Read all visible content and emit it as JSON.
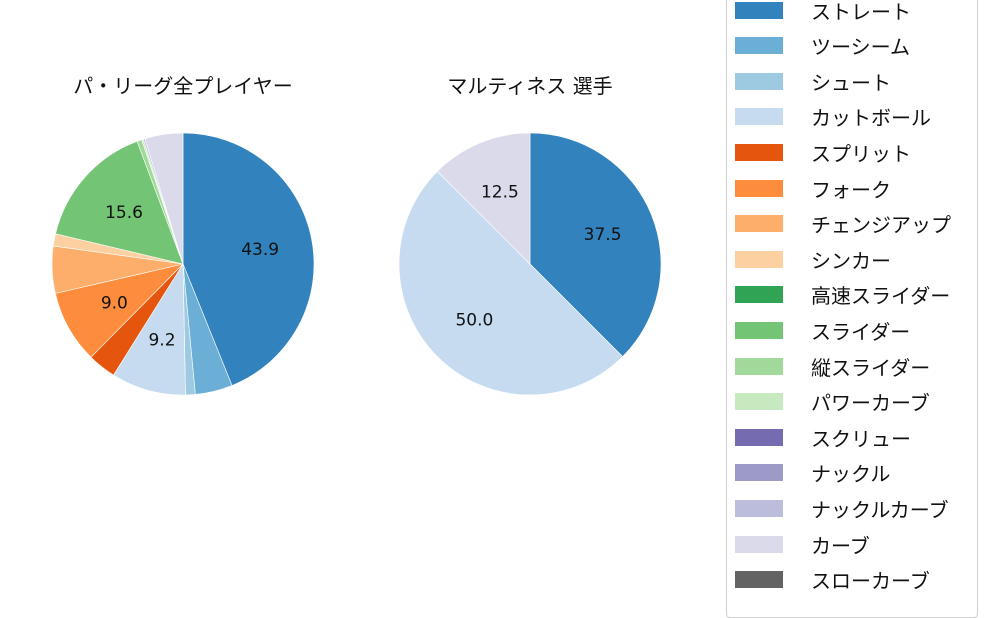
{
  "chart_data": [
    {
      "type": "pie",
      "title": "パ・リーグ全プレイヤー",
      "categories": [
        "ストレート",
        "ツーシーム",
        "シュート",
        "カットボール",
        "スプリット",
        "フォーク",
        "チェンジアップ",
        "シンカー",
        "高速スライダー",
        "スライダー",
        "縦スライダー",
        "パワーカーブ",
        "スクリュー",
        "ナックル",
        "ナックルカーブ",
        "カーブ",
        "スローカーブ"
      ],
      "values": [
        43.9,
        4.6,
        1.2,
        9.2,
        3.5,
        9.0,
        5.8,
        1.5,
        0.0,
        15.6,
        0.6,
        0.2,
        0.0,
        0.0,
        0.2,
        4.7,
        0.0
      ],
      "labels_shown": [
        "43.9",
        "9.2",
        "9.0",
        "15.6"
      ],
      "start_angle": 90,
      "direction": "clockwise"
    },
    {
      "type": "pie",
      "title": "マルティネス  選手",
      "categories": [
        "ストレート",
        "カットボール",
        "カーブ"
      ],
      "values": [
        37.5,
        50.0,
        12.5
      ],
      "labels_shown": [
        "37.5",
        "50.0",
        "12.5"
      ],
      "start_angle": 90,
      "direction": "clockwise"
    }
  ],
  "legend": {
    "position": "right",
    "items": [
      {
        "label": "ストレート",
        "color": "#3182bd"
      },
      {
        "label": "ツーシーム",
        "color": "#6baed6"
      },
      {
        "label": "シュート",
        "color": "#9ecae1"
      },
      {
        "label": "カットボール",
        "color": "#c6dbef"
      },
      {
        "label": "スプリット",
        "color": "#e6550d"
      },
      {
        "label": "フォーク",
        "color": "#fd8d3c"
      },
      {
        "label": "チェンジアップ",
        "color": "#fdae6b"
      },
      {
        "label": "シンカー",
        "color": "#fdd0a2"
      },
      {
        "label": "高速スライダー",
        "color": "#31a354"
      },
      {
        "label": "スライダー",
        "color": "#74c476"
      },
      {
        "label": "縦スライダー",
        "color": "#a1d99b"
      },
      {
        "label": "パワーカーブ",
        "color": "#c7e9c0"
      },
      {
        "label": "スクリュー",
        "color": "#756bb1"
      },
      {
        "label": "ナックル",
        "color": "#9e9ac8"
      },
      {
        "label": "ナックルカーブ",
        "color": "#bcbddc"
      },
      {
        "label": "カーブ",
        "color": "#dadaeb"
      },
      {
        "label": "スローカーブ",
        "color": "#636363"
      }
    ]
  },
  "titles": {
    "left": "パ・リーグ全プレイヤー",
    "right": "マルティネス  選手"
  }
}
